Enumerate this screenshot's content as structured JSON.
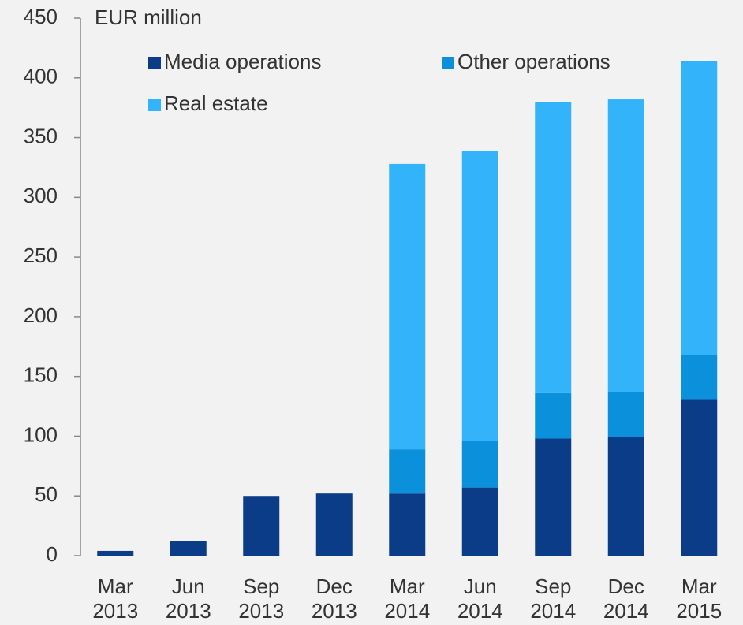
{
  "chart_data": {
    "type": "stacked_bar",
    "y_axis_label": "EUR million",
    "categories": [
      "Mar 2013",
      "Jun 2013",
      "Sep 2013",
      "Dec 2013",
      "Mar 2014",
      "Jun 2014",
      "Sep 2014",
      "Dec 2014",
      "Mar 2015"
    ],
    "series": [
      {
        "name": "Media operations",
        "color": "#0b3c87",
        "values": [
          4,
          12,
          50,
          52,
          52,
          57,
          98,
          99,
          131
        ]
      },
      {
        "name": "Other operations",
        "color": "#0b91dc",
        "values": [
          0,
          0,
          0,
          0,
          37,
          39,
          38,
          38,
          37
        ]
      },
      {
        "name": "Real estate",
        "color": "#33b3fa",
        "values": [
          0,
          0,
          0,
          0,
          239,
          243,
          244,
          245,
          246
        ]
      }
    ],
    "ylim": [
      0,
      450
    ],
    "yticks": [
      0,
      50,
      100,
      150,
      200,
      250,
      300,
      350,
      400,
      450
    ],
    "grid": false
  }
}
